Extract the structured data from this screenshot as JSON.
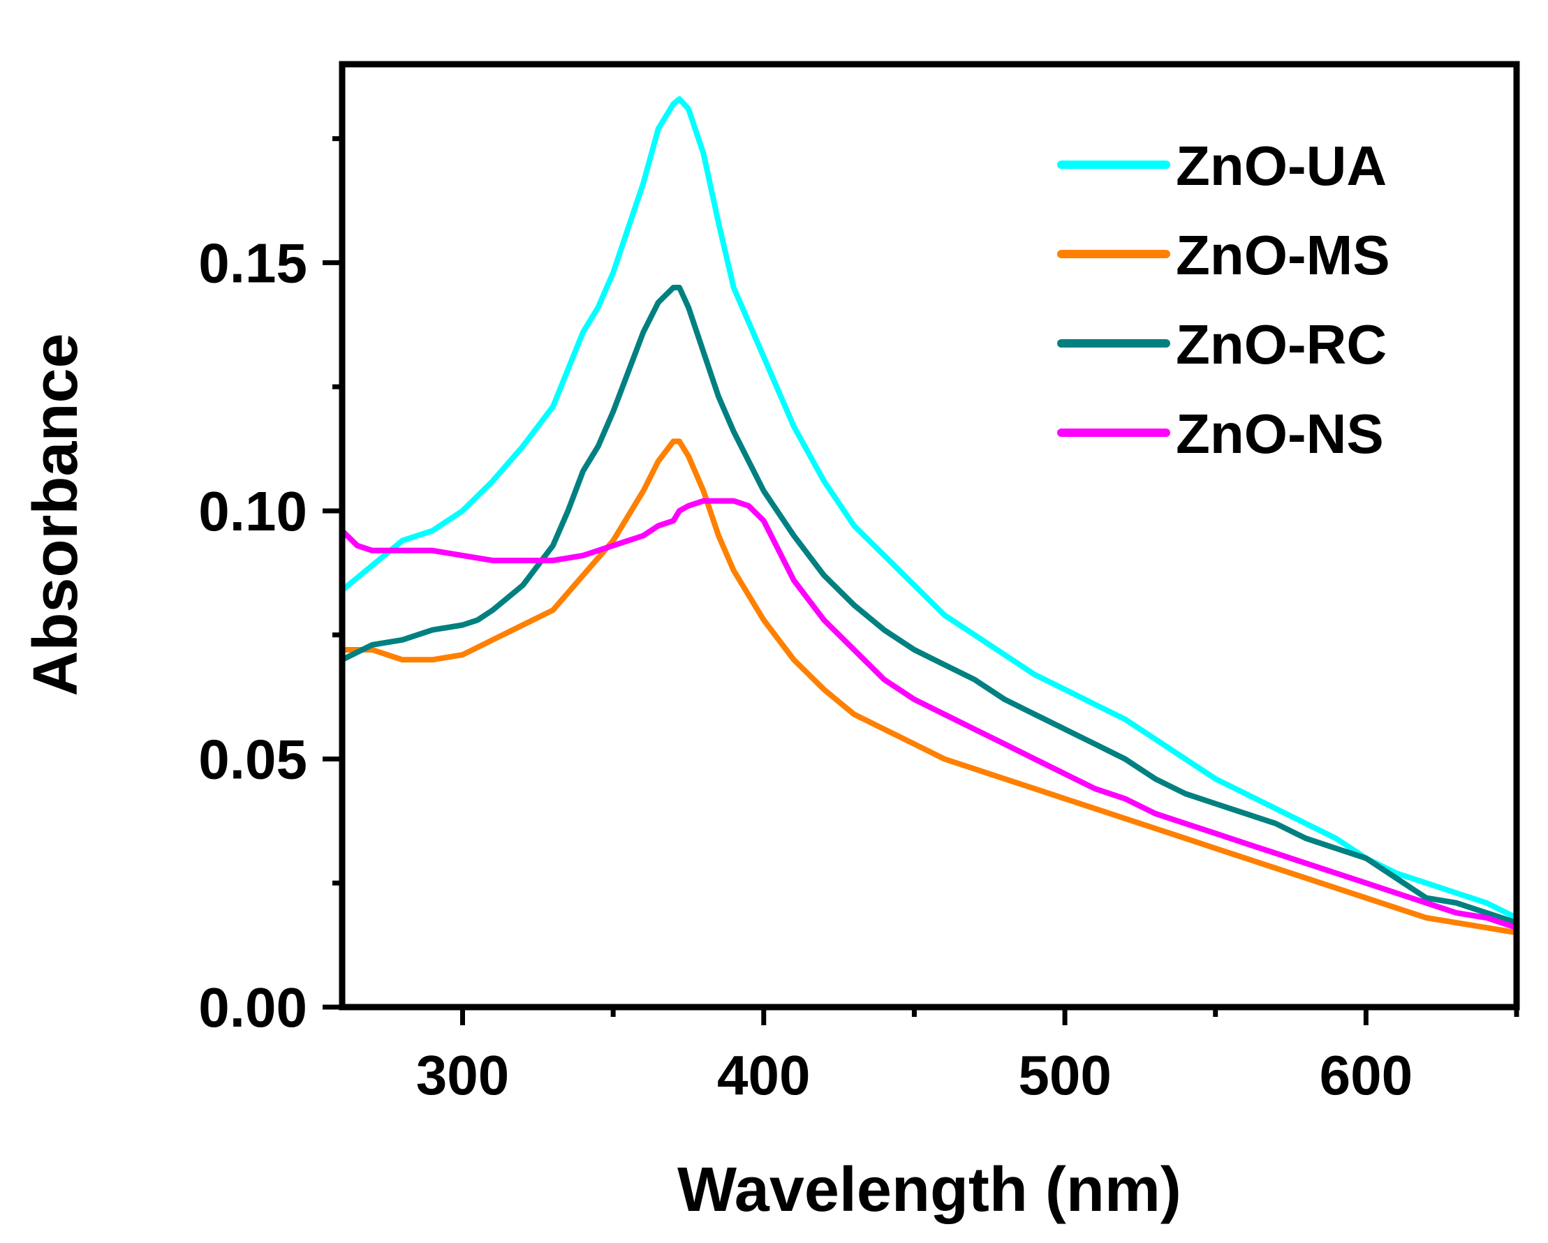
{
  "chart_data": {
    "type": "line",
    "title": "",
    "xlabel": "Wavelength (nm)",
    "ylabel": "Absorbance",
    "xlim": [
      260,
      650
    ],
    "ylim": [
      0,
      0.19
    ],
    "x_ticks": [
      300,
      400,
      500,
      600
    ],
    "x_tick_labels": [
      "300",
      "400",
      "500",
      "600"
    ],
    "y_ticks": [
      0.0,
      0.05,
      0.1,
      0.15
    ],
    "y_tick_labels": [
      "0.00",
      "0.05",
      "0.10",
      "0.15"
    ],
    "grid": false,
    "legend_position": "top-right",
    "series": [
      {
        "name": "ZnO-UA",
        "color": "#00ffff",
        "x": [
          260,
          270,
          280,
          290,
          300,
          310,
          320,
          330,
          340,
          345,
          350,
          355,
          360,
          365,
          370,
          372,
          375,
          380,
          385,
          390,
          400,
          410,
          420,
          430,
          440,
          450,
          460,
          470,
          480,
          490,
          500,
          510,
          520,
          530,
          540,
          550,
          560,
          570,
          580,
          590,
          600,
          610,
          620,
          630,
          640,
          650
        ],
        "y": [
          0.084,
          0.089,
          0.094,
          0.096,
          0.1,
          0.106,
          0.113,
          0.121,
          0.136,
          0.141,
          0.148,
          0.157,
          0.166,
          0.177,
          0.182,
          0.183,
          0.181,
          0.172,
          0.158,
          0.145,
          0.131,
          0.117,
          0.106,
          0.097,
          0.091,
          0.085,
          0.079,
          0.075,
          0.071,
          0.067,
          0.064,
          0.061,
          0.058,
          0.054,
          0.05,
          0.046,
          0.043,
          0.04,
          0.037,
          0.034,
          0.03,
          0.027,
          0.025,
          0.023,
          0.021,
          0.018
        ]
      },
      {
        "name": "ZnO-MS",
        "color": "#ff8000",
        "x": [
          260,
          270,
          280,
          290,
          300,
          310,
          320,
          330,
          340,
          350,
          355,
          360,
          365,
          370,
          372,
          375,
          380,
          385,
          390,
          400,
          410,
          420,
          430,
          440,
          450,
          460,
          470,
          480,
          490,
          500,
          510,
          520,
          530,
          540,
          550,
          560,
          570,
          580,
          590,
          600,
          610,
          620,
          630,
          640,
          650
        ],
        "y": [
          0.072,
          0.072,
          0.07,
          0.07,
          0.071,
          0.074,
          0.077,
          0.08,
          0.087,
          0.094,
          0.099,
          0.104,
          0.11,
          0.114,
          0.114,
          0.111,
          0.104,
          0.095,
          0.088,
          0.078,
          0.07,
          0.064,
          0.059,
          0.056,
          0.053,
          0.05,
          0.048,
          0.046,
          0.044,
          0.042,
          0.04,
          0.038,
          0.036,
          0.034,
          0.032,
          0.03,
          0.028,
          0.026,
          0.024,
          0.022,
          0.02,
          0.018,
          0.017,
          0.016,
          0.015
        ]
      },
      {
        "name": "ZnO-RC",
        "color": "#008080",
        "x": [
          260,
          270,
          280,
          290,
          300,
          305,
          310,
          320,
          330,
          335,
          340,
          345,
          350,
          355,
          360,
          365,
          370,
          372,
          375,
          380,
          385,
          390,
          400,
          410,
          420,
          430,
          440,
          450,
          460,
          470,
          480,
          490,
          500,
          510,
          520,
          530,
          540,
          550,
          560,
          570,
          580,
          590,
          600,
          610,
          620,
          630,
          640,
          650
        ],
        "y": [
          0.07,
          0.073,
          0.074,
          0.076,
          0.077,
          0.078,
          0.08,
          0.085,
          0.093,
          0.1,
          0.108,
          0.113,
          0.12,
          0.128,
          0.136,
          0.142,
          0.145,
          0.145,
          0.141,
          0.132,
          0.123,
          0.116,
          0.104,
          0.095,
          0.087,
          0.081,
          0.076,
          0.072,
          0.069,
          0.066,
          0.062,
          0.059,
          0.056,
          0.053,
          0.05,
          0.046,
          0.043,
          0.041,
          0.039,
          0.037,
          0.034,
          0.032,
          0.03,
          0.026,
          0.022,
          0.021,
          0.019,
          0.017
        ]
      },
      {
        "name": "ZnO-NS",
        "color": "#ff00ff",
        "x": [
          260,
          265,
          270,
          280,
          290,
          300,
          310,
          320,
          330,
          340,
          350,
          360,
          365,
          370,
          372,
          375,
          380,
          385,
          390,
          395,
          400,
          410,
          420,
          430,
          440,
          450,
          460,
          470,
          480,
          490,
          500,
          510,
          520,
          530,
          540,
          550,
          560,
          570,
          580,
          590,
          600,
          610,
          620,
          630,
          640,
          650
        ],
        "y": [
          0.096,
          0.093,
          0.092,
          0.092,
          0.092,
          0.091,
          0.09,
          0.09,
          0.09,
          0.091,
          0.093,
          0.095,
          0.097,
          0.098,
          0.1,
          0.101,
          0.102,
          0.102,
          0.102,
          0.101,
          0.098,
          0.086,
          0.078,
          0.072,
          0.066,
          0.062,
          0.059,
          0.056,
          0.053,
          0.05,
          0.047,
          0.044,
          0.042,
          0.039,
          0.037,
          0.035,
          0.033,
          0.031,
          0.029,
          0.027,
          0.025,
          0.023,
          0.021,
          0.019,
          0.018,
          0.016
        ]
      }
    ]
  }
}
